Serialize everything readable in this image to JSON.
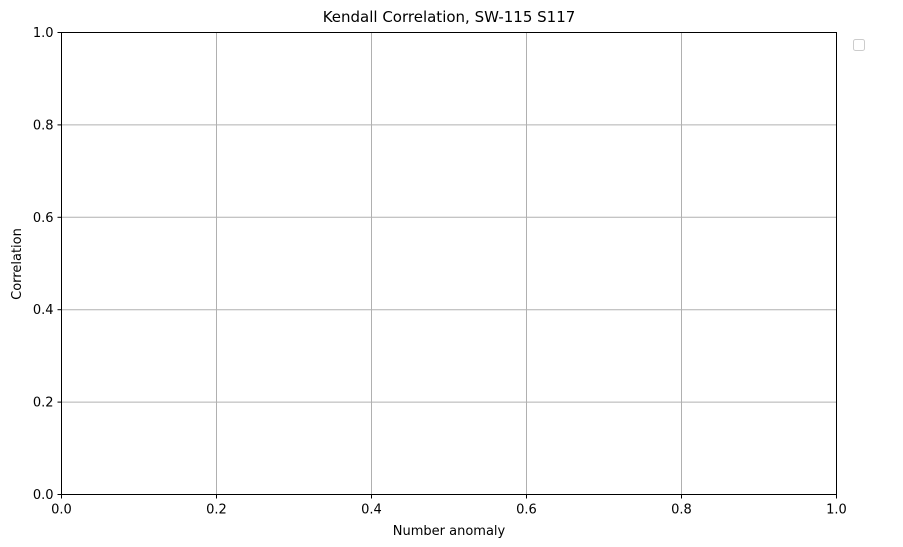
{
  "chart_data": {
    "type": "line",
    "title": "Kendall Correlation, SW-115  S117",
    "xlabel": "Number anomaly",
    "ylabel": "Correlation",
    "xlim": [
      0.0,
      1.0
    ],
    "ylim": [
      0.0,
      1.0
    ],
    "xticks": [
      "0.0",
      "0.2",
      "0.4",
      "0.6",
      "0.8",
      "1.0"
    ],
    "yticks": [
      "0.0",
      "0.2",
      "0.4",
      "0.6",
      "0.8",
      "1.0"
    ],
    "grid": true,
    "legend": {
      "placement": "outside-top-right",
      "entries": []
    },
    "series": [],
    "colors": {
      "grid": "#b0b0b0",
      "axes": "#000000",
      "legend_border": "#cccccc"
    }
  }
}
